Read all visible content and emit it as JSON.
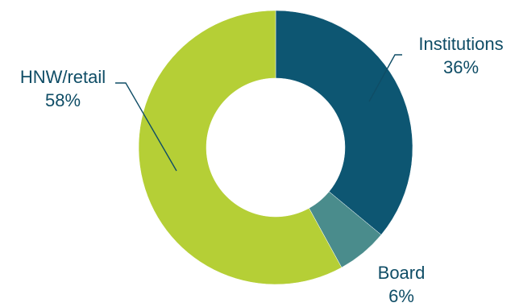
{
  "chart_data": {
    "type": "pie",
    "donut": true,
    "slices": [
      {
        "label": "Institutions",
        "value_label": "36%",
        "value": 36,
        "color": "#0d5672"
      },
      {
        "label": "Board",
        "value_label": "6%",
        "value": 6,
        "color": "#4a8c8c"
      },
      {
        "label": "HNW/retail",
        "value_label": "58%",
        "value": 58,
        "color": "#b5cf36"
      }
    ],
    "label_color": "#0f4d66",
    "start_angle_deg": 0,
    "direction": "clockwise"
  }
}
